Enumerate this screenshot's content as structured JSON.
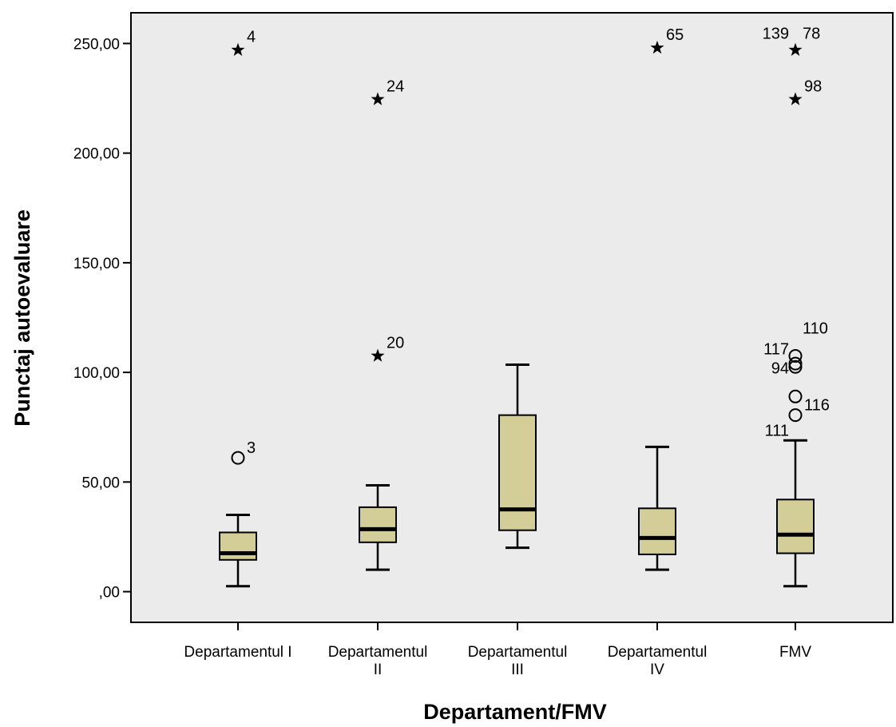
{
  "chart_data": {
    "type": "boxplot",
    "xlabel": "Departament/FMV",
    "ylabel": "Punctaj autoevaluare",
    "ylim": [
      -14,
      264
    ],
    "yticks": [
      {
        "value": 0,
        "label": ",00"
      },
      {
        "value": 50,
        "label": "50,00"
      },
      {
        "value": 100,
        "label": "100,00"
      },
      {
        "value": 150,
        "label": "150,00"
      },
      {
        "value": 200,
        "label": "200,00"
      },
      {
        "value": 250,
        "label": "250,00"
      }
    ],
    "categories": [
      {
        "label_lines": [
          "Departamentul I"
        ]
      },
      {
        "label_lines": [
          "Departamentul",
          "II"
        ]
      },
      {
        "label_lines": [
          "Departamentul",
          "III"
        ]
      },
      {
        "label_lines": [
          "Departamentul",
          "IV"
        ]
      },
      {
        "label_lines": [
          "FMV"
        ]
      }
    ],
    "boxes": [
      {
        "whisker_low": 2.5,
        "q1": 14.5,
        "median": 17.5,
        "q3": 27,
        "whisker_high": 35,
        "outliers": [
          {
            "value": 61,
            "kind": "circle",
            "label": "3",
            "label_side": "right"
          },
          {
            "value": 247,
            "kind": "star",
            "label": "4",
            "label_side": "right"
          }
        ]
      },
      {
        "whisker_low": 10,
        "q1": 22.5,
        "median": 28.5,
        "q3": 38.5,
        "whisker_high": 48.5,
        "outliers": [
          {
            "value": 107.5,
            "kind": "star",
            "label": "20",
            "label_side": "right"
          },
          {
            "value": 224.5,
            "kind": "star",
            "label": "24",
            "label_side": "right"
          }
        ]
      },
      {
        "whisker_low": 20,
        "q1": 28,
        "median": 37.5,
        "q3": 80.5,
        "whisker_high": 103.5,
        "outliers": []
      },
      {
        "whisker_low": 10,
        "q1": 17,
        "median": 24.5,
        "q3": 38,
        "whisker_high": 66,
        "outliers": [
          {
            "value": 248,
            "kind": "star",
            "label": "65",
            "label_side": "right"
          }
        ]
      },
      {
        "whisker_low": 2.5,
        "q1": 17.5,
        "median": 26,
        "q3": 42,
        "whisker_high": 69,
        "outliers": [
          {
            "value": 80.5,
            "kind": "circle",
            "label": "116",
            "label_side": "right"
          },
          {
            "value": 89,
            "kind": "circle",
            "label": "",
            "label_side": "right"
          },
          {
            "value": 102.5,
            "kind": "circle",
            "label": "",
            "label_side": "right"
          },
          {
            "value": 104,
            "kind": "circle",
            "label": "",
            "label_side": "right"
          },
          {
            "value": 107.5,
            "kind": "circle",
            "label": "",
            "label_side": "right"
          },
          {
            "value": 247,
            "kind": "star",
            "label": "",
            "label_side": "right"
          },
          {
            "value": 224.5,
            "kind": "star",
            "label": "98",
            "label_side": "right"
          }
        ],
        "extra_labels": [
          {
            "text": "139",
            "anchor_value": 247,
            "side": "left",
            "dy": -14
          },
          {
            "text": "78",
            "anchor_value": 247,
            "side": "right",
            "dy": -14
          },
          {
            "text": "110",
            "anchor_value": 107.5,
            "side": "right",
            "dy": -28
          },
          {
            "text": "117",
            "anchor_value": 107.5,
            "side": "left",
            "dy": -2
          },
          {
            "text": "94",
            "anchor_value": 102.5,
            "side": "left",
            "dy": 8
          },
          {
            "text": "111",
            "anchor_value": 80.5,
            "side": "left",
            "dy": 26
          }
        ]
      }
    ],
    "colors": {
      "plot_background": "#ebebeb",
      "box_fill": "#d3ce98",
      "stroke": "#000000"
    }
  }
}
